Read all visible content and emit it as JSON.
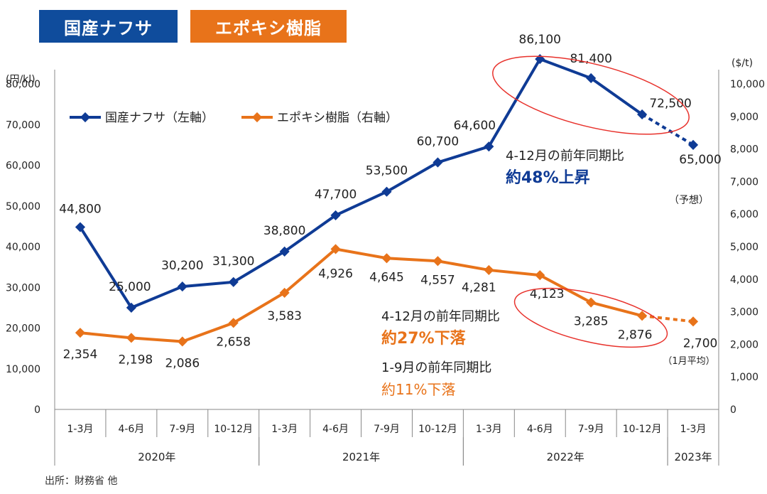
{
  "tabs": {
    "naphtha": "国産ナフサ",
    "epoxy": "エポキシ樹脂"
  },
  "source": "出所：財務省 他",
  "notes": {
    "forecast": "（予想）",
    "jan_avg": "（1月平均）",
    "naphtha_yoy_line1": "4-12月の前年同期比",
    "naphtha_yoy_line2": "約48%上昇",
    "epoxy_yoy1_line1": "4-12月の前年同期比",
    "epoxy_yoy1_line2": "約27%下落",
    "epoxy_yoy2_line1": "1-9月の前年同期比",
    "epoxy_yoy2_line2": "約11%下落"
  },
  "colors": {
    "naphtha": "#0f3b95",
    "epoxy": "#e8731a",
    "highlight": "#e8322c"
  },
  "chart_data": {
    "type": "line",
    "categories": [
      "1-3月",
      "4-6月",
      "7-9月",
      "10-12月",
      "1-3月",
      "4-6月",
      "7-9月",
      "10-12月",
      "1-3月",
      "4-6月",
      "7-9月",
      "10-12月",
      "1-3月"
    ],
    "years": [
      {
        "label": "2020年",
        "start": 0,
        "end": 3
      },
      {
        "label": "2021年",
        "start": 4,
        "end": 7
      },
      {
        "label": "2022年",
        "start": 8,
        "end": 11
      },
      {
        "label": "2023年",
        "start": 12,
        "end": 12
      }
    ],
    "left_axis": {
      "unit": "(円/kl)",
      "min": 0,
      "max": 80000,
      "ticks": [
        "0",
        "10,000",
        "20,000",
        "30,000",
        "40,000",
        "50,000",
        "60,000",
        "70,000",
        "80,000"
      ]
    },
    "right_axis": {
      "unit": "($/t)",
      "min": 0,
      "max": 10000,
      "ticks": [
        "0",
        "1,000",
        "2,000",
        "3,000",
        "4,000",
        "5,000",
        "6,000",
        "7,000",
        "8,000",
        "9,000",
        "10,000"
      ]
    },
    "series": [
      {
        "name": "国産ナフサ（左軸）",
        "axis": "left",
        "values": [
          44800,
          25000,
          30200,
          31300,
          38800,
          47700,
          53500,
          60700,
          64600,
          86100,
          81400,
          72500,
          65000
        ],
        "labels": [
          "44,800",
          "25,000",
          "30,200",
          "31,300",
          "38,800",
          "47,700",
          "53,500",
          "60,700",
          "64,600",
          "86,100",
          "81,400",
          "72,500",
          "65,000"
        ],
        "dashed_from_index": 11
      },
      {
        "name": "エポキシ樹脂（右軸）",
        "axis": "right",
        "values": [
          2354,
          2198,
          2086,
          2658,
          3583,
          4926,
          4645,
          4557,
          4281,
          4123,
          3285,
          2876,
          2700
        ],
        "labels": [
          "2,354",
          "2,198",
          "2,086",
          "2,658",
          "3,583",
          "4,926",
          "4,645",
          "4,557",
          "4,281",
          "4,123",
          "3,285",
          "2,876",
          "2,700"
        ],
        "dashed_from_index": 11
      }
    ],
    "legend_position": "top-left"
  }
}
